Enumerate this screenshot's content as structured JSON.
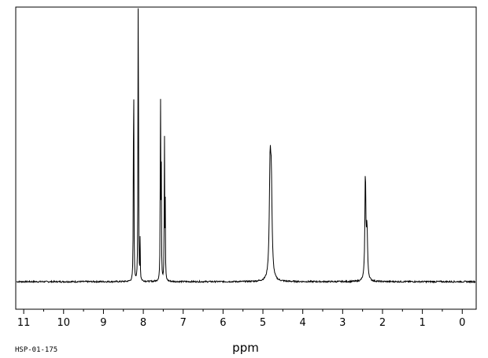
{
  "sample_id": "HSP-01-175",
  "chart_data": {
    "type": "line",
    "title": "",
    "xlabel": "ppm",
    "ylabel": "",
    "x_reversed": true,
    "xlim": [
      11.2,
      -0.35
    ],
    "ylim": [
      0,
      1.0
    ],
    "grid": false,
    "x_ticks": [
      11,
      10,
      9,
      8,
      7,
      6,
      5,
      4,
      3,
      2,
      1,
      0
    ],
    "x_tick_labels": [
      "11",
      "10",
      "9",
      "8",
      "7",
      "6",
      "5",
      "4",
      "3",
      "2",
      "1",
      "0"
    ],
    "line_color": "#000000",
    "peaks": [
      {
        "ppm": 8.24,
        "height": 0.71,
        "width": 0.012
      },
      {
        "ppm": 8.25,
        "height": 0.34,
        "width": 0.01
      },
      {
        "ppm": 8.13,
        "height": 0.995,
        "width": 0.012
      },
      {
        "ppm": 8.12,
        "height": 0.42,
        "width": 0.01
      },
      {
        "ppm": 8.08,
        "height": 0.16,
        "width": 0.01
      },
      {
        "ppm": 7.57,
        "height": 0.835,
        "width": 0.012
      },
      {
        "ppm": 7.55,
        "height": 0.53,
        "width": 0.01
      },
      {
        "ppm": 7.47,
        "height": 0.59,
        "width": 0.012
      },
      {
        "ppm": 7.45,
        "height": 0.31,
        "width": 0.01
      },
      {
        "ppm": 4.82,
        "height": 0.41,
        "width": 0.045
      },
      {
        "ppm": 4.79,
        "height": 0.34,
        "width": 0.045
      },
      {
        "ppm": 2.43,
        "height": 0.42,
        "width": 0.028
      },
      {
        "ppm": 2.39,
        "height": 0.2,
        "width": 0.035
      }
    ]
  }
}
